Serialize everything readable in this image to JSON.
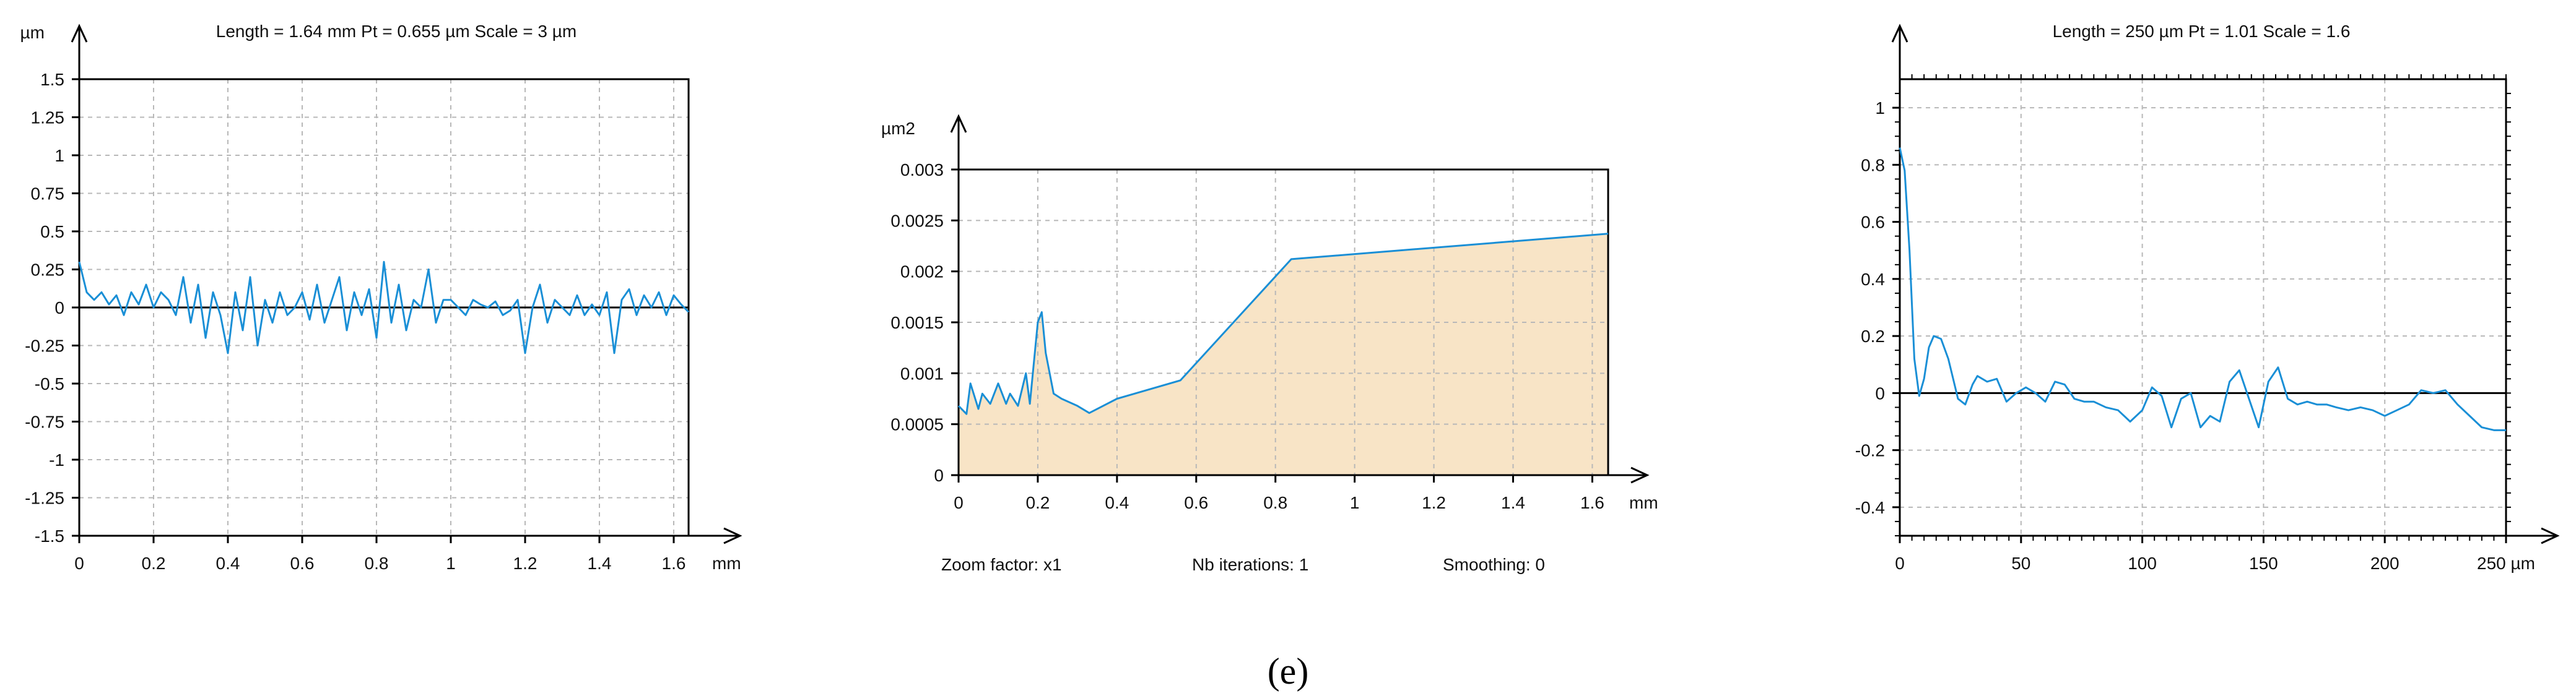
{
  "caption": "(e)",
  "colors": {
    "trace": "#1a8fd6",
    "fill": "#f8e4c6",
    "grid": "#b8b8b8",
    "axis": "#000000"
  },
  "chart_data": [
    {
      "type": "line",
      "header": "Length = 1.64 mm  Pt = 0.655 µm  Scale = 3 µm",
      "ylabel": "µm",
      "xlabel": "mm",
      "xlim": [
        0,
        1.64
      ],
      "ylim": [
        -1.5,
        1.5
      ],
      "xticks": [
        "0",
        "0.2",
        "0.4",
        "0.6",
        "0.8",
        "1",
        "1.2",
        "1.4",
        "1.6"
      ],
      "yticks": [
        "1.5",
        "1.25",
        "1",
        "0.75",
        "0.5",
        "0.25",
        "0",
        "-0.25",
        "-0.5",
        "-0.75",
        "-1",
        "-1.25",
        "-1.5"
      ],
      "grid": true,
      "series": [
        {
          "x": [
            0,
            0.02,
            0.04,
            0.06,
            0.08,
            0.1,
            0.12,
            0.14,
            0.16,
            0.18,
            0.2,
            0.22,
            0.24,
            0.26,
            0.28,
            0.3,
            0.32,
            0.34,
            0.36,
            0.38,
            0.4,
            0.42,
            0.44,
            0.46,
            0.48,
            0.5,
            0.52,
            0.54,
            0.56,
            0.58,
            0.6,
            0.62,
            0.64,
            0.66,
            0.68,
            0.7,
            0.72,
            0.74,
            0.76,
            0.78,
            0.8,
            0.82,
            0.84,
            0.86,
            0.88,
            0.9,
            0.92,
            0.94,
            0.96,
            0.98,
            1.0,
            1.02,
            1.04,
            1.06,
            1.08,
            1.1,
            1.12,
            1.14,
            1.16,
            1.18,
            1.2,
            1.22,
            1.24,
            1.26,
            1.28,
            1.3,
            1.32,
            1.34,
            1.36,
            1.38,
            1.4,
            1.42,
            1.44,
            1.46,
            1.48,
            1.5,
            1.52,
            1.54,
            1.56,
            1.58,
            1.6,
            1.62,
            1.64
          ],
          "y": [
            0.3,
            0.1,
            0.05,
            0.1,
            0.02,
            0.08,
            -0.05,
            0.1,
            0.02,
            0.15,
            0.0,
            0.1,
            0.05,
            -0.05,
            0.2,
            -0.1,
            0.15,
            -0.2,
            0.1,
            -0.05,
            -0.3,
            0.1,
            -0.15,
            0.2,
            -0.25,
            0.05,
            -0.1,
            0.1,
            -0.05,
            0.0,
            0.1,
            -0.08,
            0.15,
            -0.1,
            0.05,
            0.2,
            -0.15,
            0.1,
            -0.05,
            0.12,
            -0.2,
            0.3,
            -0.1,
            0.15,
            -0.15,
            0.05,
            0.0,
            0.25,
            -0.1,
            0.05,
            0.05,
            0.0,
            -0.05,
            0.05,
            0.02,
            0.0,
            0.04,
            -0.05,
            -0.02,
            0.05,
            -0.3,
            0.0,
            0.15,
            -0.1,
            0.05,
            0.0,
            -0.05,
            0.08,
            -0.05,
            0.02,
            -0.05,
            0.1,
            -0.3,
            0.05,
            0.12,
            -0.05,
            0.08,
            0.0,
            0.1,
            -0.05,
            0.08,
            0.02,
            -0.03
          ]
        }
      ]
    },
    {
      "type": "area",
      "ylabel": "µm2",
      "xlabel": "mm",
      "xlim": [
        0,
        1.64
      ],
      "ylim": [
        0,
        0.003
      ],
      "xticks": [
        "0",
        "0.2",
        "0.4",
        "0.6",
        "0.8",
        "1",
        "1.2",
        "1.4",
        "1.6"
      ],
      "yticks": [
        "0.003",
        "0.0025",
        "0.002",
        "0.0015",
        "0.001",
        "0.0005",
        "0"
      ],
      "grid": true,
      "footer": [
        "Zoom factor: x1",
        "Nb iterations: 1",
        "Smoothing: 0"
      ],
      "series": [
        {
          "x": [
            0,
            0.02,
            0.03,
            0.05,
            0.06,
            0.08,
            0.1,
            0.12,
            0.13,
            0.15,
            0.17,
            0.18,
            0.19,
            0.2,
            0.21,
            0.22,
            0.24,
            0.26,
            0.3,
            0.33,
            0.4,
            0.56,
            0.84,
            1.64
          ],
          "y": [
            0.00068,
            0.0006,
            0.0009,
            0.00065,
            0.0008,
            0.0007,
            0.0009,
            0.0007,
            0.0008,
            0.00068,
            0.001,
            0.0007,
            0.0011,
            0.0015,
            0.0016,
            0.0012,
            0.0008,
            0.00075,
            0.00068,
            0.00061,
            0.00075,
            0.00093,
            0.00212,
            0.00237
          ]
        }
      ]
    },
    {
      "type": "line",
      "header": "Length = 250 µm  Pt = 1.01   Scale = 1.6",
      "xlabel": "µm",
      "xlim": [
        0,
        250
      ],
      "ylim": [
        -0.5,
        1.1
      ],
      "xticks": [
        "0",
        "50",
        "100",
        "150",
        "200",
        "250 µm"
      ],
      "yticks": [
        "1",
        "0.8",
        "0.6",
        "0.4",
        "0.2",
        "0",
        "-0.2",
        "-0.4"
      ],
      "grid": true,
      "series": [
        {
          "x": [
            0,
            2,
            4,
            6,
            8,
            10,
            12,
            14,
            17,
            20,
            24,
            27,
            30,
            32,
            36,
            40,
            44,
            48,
            52,
            56,
            60,
            64,
            68,
            72,
            76,
            80,
            85,
            90,
            95,
            100,
            104,
            108,
            112,
            116,
            120,
            124,
            128,
            132,
            136,
            140,
            144,
            148,
            152,
            156,
            160,
            164,
            168,
            172,
            176,
            180,
            185,
            190,
            195,
            200,
            205,
            210,
            215,
            220,
            225,
            230,
            235,
            240,
            245,
            250
          ],
          "y": [
            0.86,
            0.78,
            0.5,
            0.12,
            -0.01,
            0.05,
            0.16,
            0.2,
            0.19,
            0.12,
            -0.02,
            -0.04,
            0.03,
            0.06,
            0.04,
            0.05,
            -0.03,
            0.0,
            0.02,
            0.0,
            -0.03,
            0.04,
            0.03,
            -0.02,
            -0.03,
            -0.03,
            -0.05,
            -0.06,
            -0.1,
            -0.06,
            0.02,
            -0.01,
            -0.12,
            -0.02,
            0.0,
            -0.12,
            -0.08,
            -0.1,
            0.04,
            0.08,
            -0.02,
            -0.12,
            0.04,
            0.09,
            -0.02,
            -0.04,
            -0.03,
            -0.04,
            -0.04,
            -0.05,
            -0.06,
            -0.05,
            -0.06,
            -0.08,
            -0.06,
            -0.04,
            0.01,
            0.0,
            0.01,
            -0.04,
            -0.08,
            -0.12,
            -0.13,
            -0.13
          ]
        }
      ]
    }
  ]
}
